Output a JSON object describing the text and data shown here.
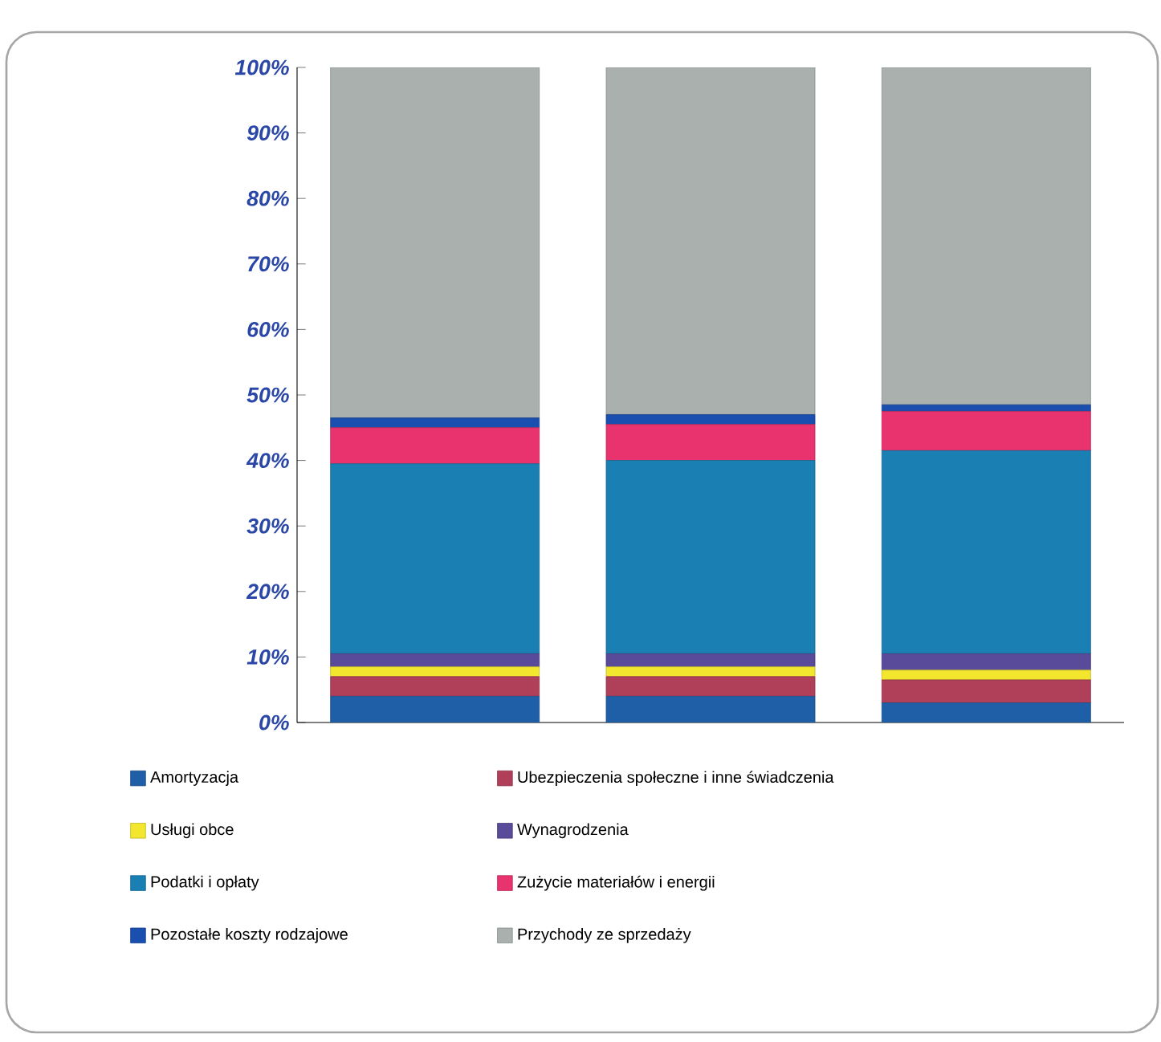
{
  "chart_data": {
    "type": "bar",
    "stacked": true,
    "categories": [
      null,
      null,
      null
    ],
    "series": [
      {
        "name": "Amortyzacja",
        "color": "#1f5fa8",
        "values": [
          4,
          4,
          3
        ]
      },
      {
        "name": "Ubezpieczenia społeczne i inne świadczenia",
        "color": "#b0405a",
        "values": [
          3,
          3,
          3.5
        ]
      },
      {
        "name": "Usługi obce",
        "color": "#f2e62e",
        "values": [
          1.5,
          1.5,
          1.5
        ]
      },
      {
        "name": "Wynagrodzenia",
        "color": "#5a4a9a",
        "values": [
          2,
          2,
          2.5
        ]
      },
      {
        "name": "Podatki i opłaty",
        "color": "#1a80b4",
        "values": [
          29,
          29.5,
          31
        ]
      },
      {
        "name": "Zużycie materiałów i energii",
        "color": "#e8336e",
        "values": [
          5.5,
          5.5,
          6
        ]
      },
      {
        "name": "Pozostałe koszty rodzajowe",
        "color": "#1a4fb0",
        "values": [
          1.5,
          1.5,
          1
        ]
      },
      {
        "name": "Przychody ze sprzedaży",
        "color": "#a9b0ad",
        "values": [
          53.5,
          53,
          51.5
        ]
      }
    ],
    "ylim": [
      0,
      100
    ],
    "yticks": [
      {
        "value": 0,
        "label": "0%"
      },
      {
        "value": 10,
        "label": "10%"
      },
      {
        "value": 20,
        "label": "20%"
      },
      {
        "value": 30,
        "label": "30%"
      },
      {
        "value": 40,
        "label": "40%"
      },
      {
        "value": 50,
        "label": "50%"
      },
      {
        "value": 60,
        "label": "60%"
      },
      {
        "value": 70,
        "label": "70%"
      },
      {
        "value": 80,
        "label": "80%"
      },
      {
        "value": 90,
        "label": "90%"
      },
      {
        "value": 100,
        "label": "100%"
      }
    ],
    "tick_labels": "y",
    "grid": false,
    "legend": "bottom"
  }
}
